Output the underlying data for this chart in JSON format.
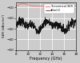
{
  "title": "",
  "xlabel": "Frequency (GHz)",
  "ylabel": "SER (dBm/m²)",
  "xlim": [
    8,
    18
  ],
  "ylim": [
    -50,
    -5
  ],
  "yticks": [
    -50,
    -40,
    -30,
    -20,
    -10
  ],
  "xticks": [
    8,
    10,
    12,
    14,
    16,
    18
  ],
  "legend_labels": [
    "Theoretical SER",
    "dBm(2)"
  ],
  "theoretical_color": "#f08888",
  "measured_color": "#111111",
  "background_color": "#cccccc",
  "grid_color": "#ffffff",
  "figsize": [
    1.0,
    0.79
  ],
  "dpi": 100,
  "theo_y_base": -8.5,
  "theo_amp1": 1.5,
  "theo_period1": 7,
  "theo_amp2": 0.8,
  "theo_period2": 3.5,
  "meas_y_base": -27,
  "meas_amp1": 3.0,
  "meas_period1": 4.5,
  "meas_amp2": 2.0,
  "meas_period2": 2.2,
  "meas_noise_std": 2.0
}
